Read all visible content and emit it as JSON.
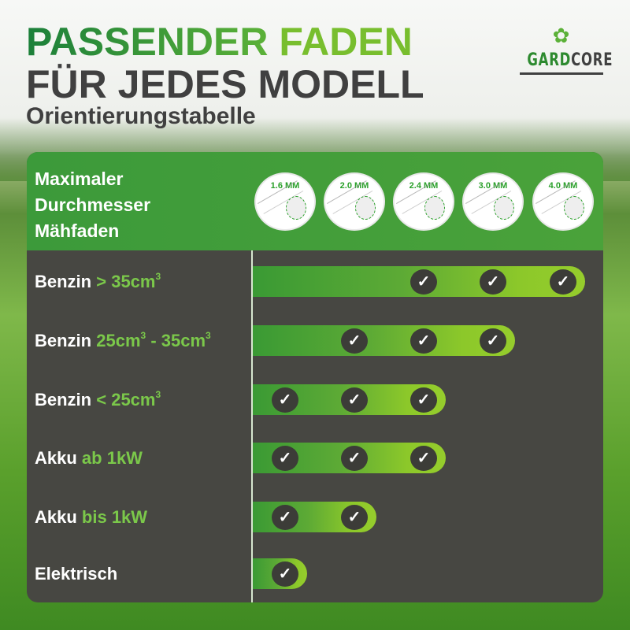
{
  "title": {
    "line1_part1": "PASSENDER",
    "line1_part2": "FADEN",
    "line2": "FÜR JEDES MODELL",
    "subtitle": "Orientierungstabelle"
  },
  "logo": {
    "part1": "GARD",
    "part2": "CORE"
  },
  "table": {
    "header_label": [
      "Maximaler",
      "Durchmesser",
      "Mähfaden"
    ],
    "sizes": [
      "1.6 MM",
      "2.0 MM",
      "2.4 MM",
      "3.0 MM",
      "4.0 MM"
    ],
    "rows": [
      {
        "label": "Benzin",
        "highlight": "> 35cm",
        "sup": "3",
        "suffix": "",
        "suffix_sup": "",
        "checks": [
          2,
          3,
          4
        ]
      },
      {
        "label": "Benzin",
        "highlight": "25cm",
        "sup": "3",
        "suffix": " - 35cm",
        "suffix_sup": "3",
        "checks": [
          1,
          2,
          3
        ]
      },
      {
        "label": "Benzin",
        "highlight": "< 25cm",
        "sup": "3",
        "suffix": "",
        "suffix_sup": "",
        "checks": [
          0,
          1,
          2
        ]
      },
      {
        "label": "Akku",
        "highlight": "ab 1kW",
        "sup": "",
        "suffix": "",
        "suffix_sup": "",
        "checks": [
          0,
          1,
          2
        ]
      },
      {
        "label": "Akku",
        "highlight": "bis 1kW",
        "sup": "",
        "suffix": "",
        "suffix_sup": "",
        "checks": [
          0,
          1
        ]
      },
      {
        "label": "Elektrisch",
        "highlight": "",
        "sup": "",
        "suffix": "",
        "suffix_sup": "",
        "checks": [
          0
        ]
      }
    ],
    "check_icon": "✓"
  },
  "colors": {
    "green_dark": "#1b7f3a",
    "green_light": "#78be2e",
    "panel": "#474742",
    "header": "#3c9a3a"
  }
}
